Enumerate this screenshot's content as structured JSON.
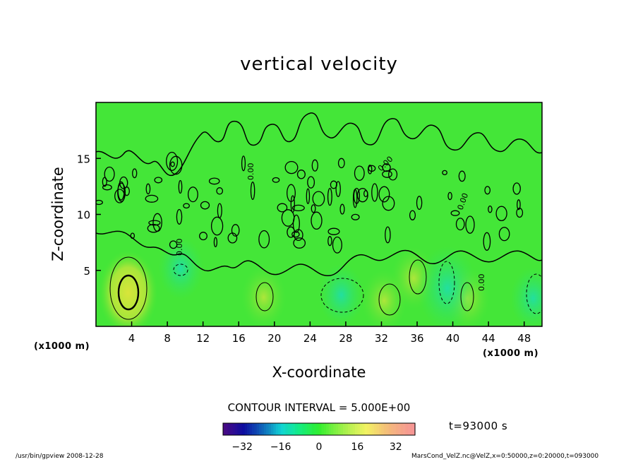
{
  "chart_data": {
    "type": "heatmap",
    "title": "vertical velocity",
    "xlabel": "X-coordinate",
    "ylabel": "Z-coordinate",
    "x_unit_label": "(x1000 m)",
    "x_unit_label_right": "(x1000 m)",
    "xlim": [
      0,
      50
    ],
    "ylim": [
      0,
      20
    ],
    "x_ticks": [
      4,
      8,
      12,
      16,
      20,
      24,
      28,
      32,
      36,
      40,
      44,
      48
    ],
    "y_ticks": [
      5,
      10,
      15
    ],
    "contour_interval_text": "CONTOUR INTERVAL = 5.000E+00",
    "contour_label": "0.00",
    "time_text": "t=93000 s",
    "colorbar": {
      "range": [
        -40,
        40
      ],
      "ticks": [
        -32,
        -16,
        0,
        16,
        32
      ]
    },
    "features": [
      {
        "kind": "updraft",
        "x": 3.6,
        "z": 3.0,
        "value": 10
      },
      {
        "kind": "updraft",
        "x": 18.8,
        "z": 2.6,
        "value": 5
      },
      {
        "kind": "updraft",
        "x": 32.3,
        "z": 2.3,
        "value": 5
      },
      {
        "kind": "updraft",
        "x": 35.6,
        "z": 4.3,
        "value": 5
      },
      {
        "kind": "updraft",
        "x": 41.6,
        "z": 2.5,
        "value": 5
      },
      {
        "kind": "downdraft",
        "x": 27.5,
        "z": 2.8,
        "value": -5
      },
      {
        "kind": "downdraft",
        "x": 39.4,
        "z": 3.4,
        "value": -10
      },
      {
        "kind": "downdraft",
        "x": 49.0,
        "z": 2.5,
        "value": -5
      },
      {
        "kind": "downdraft",
        "x": 9.5,
        "z": 5.2,
        "value": -5
      }
    ]
  },
  "footer": {
    "left": "/usr/bin/gpview   2008-12-28",
    "right": "MarsCond_VelZ.nc@VelZ,x=0:50000,z=0:20000,t=093000"
  },
  "colors": {
    "background_field": "#33e633",
    "updraft": "#bde63a",
    "downdraft": "#1fe08a",
    "contour": "#000000"
  }
}
